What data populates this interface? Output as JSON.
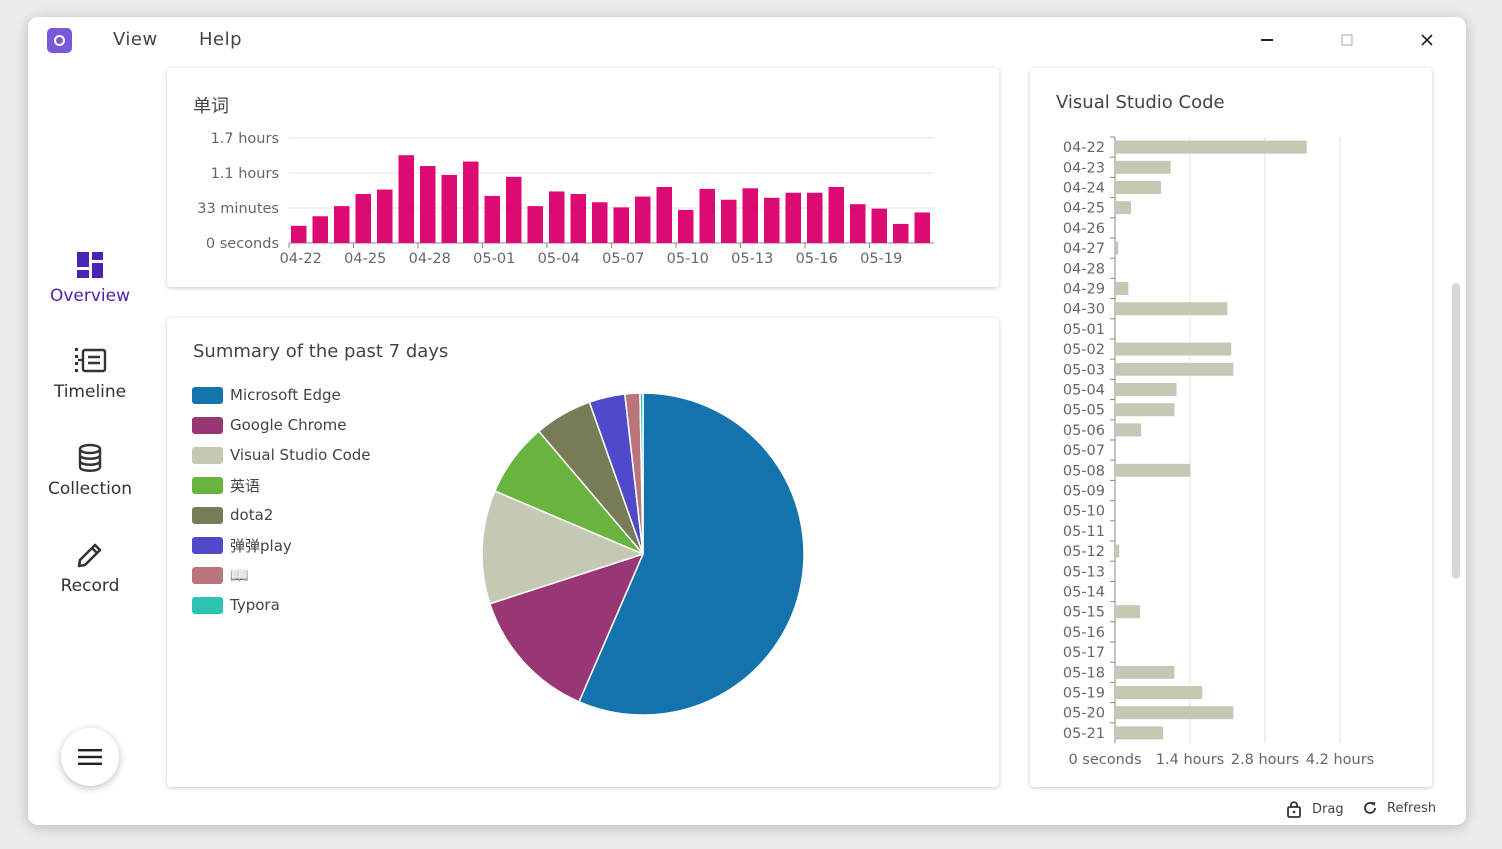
{
  "menu": {
    "view": "View",
    "help": "Help"
  },
  "window_controls": {
    "minimize": "—",
    "maximize": "☐",
    "close": "✕"
  },
  "sidebar": {
    "items": [
      {
        "label": "Overview",
        "icon": "dashboard-icon",
        "active": true
      },
      {
        "label": "Timeline",
        "icon": "timeline-icon",
        "active": false
      },
      {
        "label": "Collection",
        "icon": "database-icon",
        "active": false
      },
      {
        "label": "Record",
        "icon": "pencil-icon",
        "active": false
      }
    ],
    "menu_icon": "hamburger-icon"
  },
  "word_card": {
    "title": "单词"
  },
  "summary_card": {
    "title": "Summary of the past 7 days"
  },
  "vscode_card": {
    "title": "Visual Studio Code"
  },
  "footer": {
    "drag": "Drag",
    "refresh": "Refresh"
  },
  "accent": "#4a23b0",
  "chart_data": [
    {
      "type": "bar",
      "title": "单词",
      "color": "#dd0a73",
      "ytick_labels": [
        "0 seconds",
        "33 minutes",
        "1.1 hours",
        "1.7 hours"
      ],
      "ytick_values_hours": [
        0,
        0.55,
        1.1,
        1.65
      ],
      "ylim_hours": [
        0,
        1.65
      ],
      "xtick_labels": [
        "04-22",
        "04-25",
        "04-28",
        "05-01",
        "05-04",
        "05-07",
        "05-10",
        "05-13",
        "05-16",
        "05-19"
      ],
      "categories": [
        "04-22",
        "04-23",
        "04-24",
        "04-25",
        "04-26",
        "04-27",
        "04-28",
        "04-29",
        "04-30",
        "05-01",
        "05-02",
        "05-03",
        "05-04",
        "05-05",
        "05-06",
        "05-07",
        "05-08",
        "05-09",
        "05-10",
        "05-11",
        "05-12",
        "05-13",
        "05-14",
        "05-15",
        "05-16",
        "05-17",
        "05-18",
        "05-19",
        "05-20",
        "05-21"
      ],
      "values_hours": [
        0.27,
        0.42,
        0.58,
        0.77,
        0.84,
        1.38,
        1.21,
        1.07,
        1.28,
        0.74,
        1.04,
        0.58,
        0.81,
        0.77,
        0.64,
        0.56,
        0.73,
        0.88,
        0.52,
        0.85,
        0.68,
        0.86,
        0.71,
        0.79,
        0.79,
        0.88,
        0.61,
        0.54,
        0.3,
        0.48
      ]
    },
    {
      "type": "pie",
      "title": "Summary of the past 7 days",
      "legend_position": "left",
      "labels": [
        "Microsoft Edge",
        "Google Chrome",
        "Visual Studio Code",
        "英语",
        "dota2",
        "弹弹play",
        "📖",
        "Typora"
      ],
      "colors": [
        "#1473ac",
        "#993775",
        "#c5c8b4",
        "#68b43e",
        "#787c56",
        "#504acb",
        "#b9757b",
        "#2cc3b2"
      ],
      "values": [
        56.5,
        13.5,
        11.4,
        7.4,
        5.8,
        3.6,
        1.5,
        0.3
      ]
    },
    {
      "type": "bar",
      "orientation": "horizontal",
      "title": "Visual Studio Code",
      "color": "#c5c8b4",
      "xtick_labels": [
        "0 seconds",
        "1.4 hours",
        "2.8 hours",
        "4.2 hours"
      ],
      "xtick_values_hours": [
        0,
        1.4,
        2.8,
        4.2
      ],
      "xlim_hours": [
        0,
        4.2
      ],
      "categories": [
        "04-22",
        "04-23",
        "04-24",
        "04-25",
        "04-26",
        "04-27",
        "04-28",
        "04-29",
        "04-30",
        "05-01",
        "05-02",
        "05-03",
        "05-04",
        "05-05",
        "05-06",
        "05-07",
        "05-08",
        "05-09",
        "05-10",
        "05-11",
        "05-12",
        "05-13",
        "05-14",
        "05-15",
        "05-16",
        "05-17",
        "05-18",
        "05-19",
        "05-20",
        "05-21"
      ],
      "values_hours": [
        3.56,
        1.02,
        0.84,
        0.28,
        0,
        0.04,
        0,
        0.23,
        2.08,
        0,
        2.15,
        2.19,
        1.13,
        1.09,
        0.47,
        0,
        1.39,
        0,
        0,
        0,
        0.06,
        0,
        0,
        0.45,
        0,
        0,
        1.09,
        1.61,
        2.19,
        0.88
      ]
    }
  ]
}
